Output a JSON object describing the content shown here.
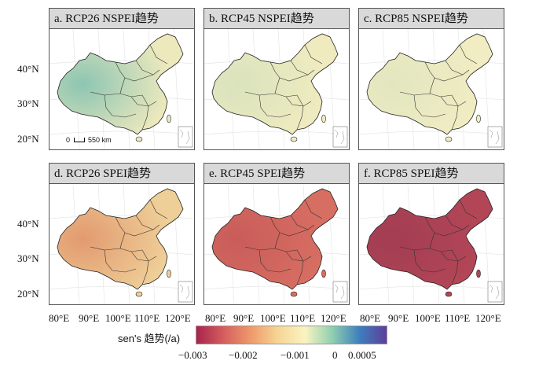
{
  "panels": [
    {
      "title": "a. RCP26 NSPEI趋势",
      "fill": "#ede9bd",
      "tint": "#8dc5b2"
    },
    {
      "title": "b. RCP45 NSPEI趋势",
      "fill": "#f0ebbf",
      "tint": "#d9e3bd"
    },
    {
      "title": "c. RCP85 NSPEI趋势",
      "fill": "#f1ecc2",
      "tint": "#e2e6c0"
    },
    {
      "title": "d. RCP26 SPEI趋势",
      "fill": "#efcf98",
      "tint": "#e29a6f"
    },
    {
      "title": "e. RCP45 SPEI趋势",
      "fill": "#d76e62",
      "tint": "#c95c5a"
    },
    {
      "title": "f. RCP85 SPEI趋势",
      "fill": "#b24657",
      "tint": "#a33d52"
    }
  ],
  "y_ticks": [
    "40°N",
    "30°N",
    "20°N"
  ],
  "x_ticks": [
    "80°E",
    "90°E",
    "100°E",
    "110°E",
    "120°E"
  ],
  "scale_bar": "550 km",
  "scale_zero": "0",
  "legend": {
    "title": "sen's 趋势(/a)",
    "ticks": [
      "−0.003",
      "−0.002",
      "−0.001",
      "0",
      "0.0005"
    ],
    "colors": [
      "#a8244c",
      "#d55e5e",
      "#ee9a6a",
      "#f6d595",
      "#fbf3c2",
      "#8fcfb0",
      "#3e7fbd",
      "#5e3d9b"
    ]
  }
}
